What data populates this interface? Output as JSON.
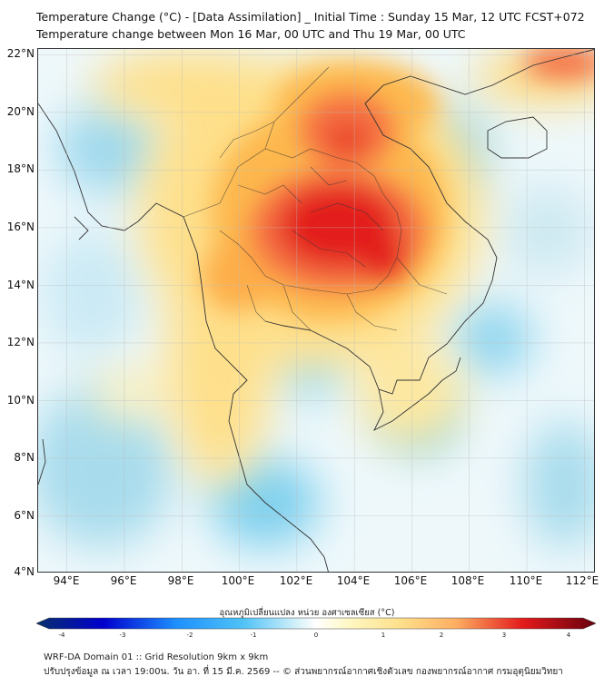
{
  "title_line1": "Temperature Change (°C) - [Data Assimilation] _ Initial Time : Sunday 15 Mar, 12 UTC FCST+072",
  "title_line2": "Temperature change between Mon 16 Mar, 00 UTC and Thu 19 Mar, 00 UTC",
  "map": {
    "lat_range": [
      4,
      22.2
    ],
    "lon_range": [
      93,
      112.4
    ],
    "lat_ticks": [
      "22°N",
      "20°N",
      "18°N",
      "16°N",
      "14°N",
      "12°N",
      "10°N",
      "8°N",
      "6°N",
      "4°N"
    ],
    "lon_ticks": [
      "94°E",
      "96°E",
      "98°E",
      "100°E",
      "102°E",
      "104°E",
      "106°E",
      "108°E",
      "110°E",
      "112°E"
    ],
    "grid": true,
    "hotspot": "northeast Thailand / central Laos",
    "colors": {
      "strong_warm": "#e31a1c",
      "warm": "#fd8d3c",
      "mild_warm": "#fee08b",
      "neutral": "#ffffff",
      "mild_cool": "#a6dcef",
      "cool": "#4fc3f7"
    }
  },
  "colorbar": {
    "label": "อุณหภูมิเปลี่ยนแปลง หน่วย องศาเซลเซียส (°C)",
    "ticks": [
      "-4",
      "-3",
      "-2",
      "-1",
      "0",
      "1",
      "2",
      "3",
      "4"
    ],
    "range": [
      -4,
      4
    ]
  },
  "footer": {
    "line1": "WRF-DA Domain 01 :: Grid Resolution 9km x 9km",
    "line2": "ปรับปรุงข้อมูล ณ เวลา 19:00น. วัน อา. ที่ 15 มี.ค. 2569 -- © ส่วนพยากรณ์อากาศเชิงตัวเลข กองพยากรณ์อากาศ กรมอุตุนิยมวิทยา"
  }
}
